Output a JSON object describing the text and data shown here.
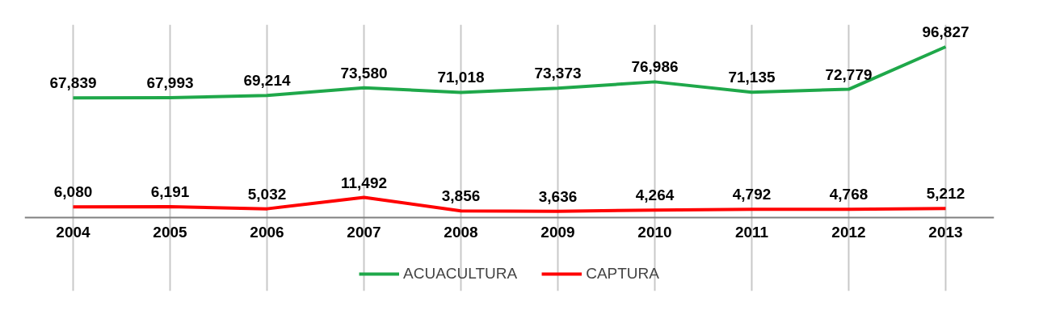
{
  "chart_data": {
    "type": "line",
    "categories": [
      "2004",
      "2005",
      "2006",
      "2007",
      "2008",
      "2009",
      "2010",
      "2011",
      "2012",
      "2013"
    ],
    "series": [
      {
        "name": "ACUACULTURA",
        "color": "#1fa84a",
        "values": [
          67839,
          67993,
          69214,
          73580,
          71018,
          73373,
          76986,
          71135,
          72779,
          96827
        ],
        "value_labels": [
          "67,839",
          "67,993",
          "69,214",
          "73,580",
          "71,018",
          "73,373",
          "76,986",
          "71,135",
          "72,779",
          "96,827"
        ]
      },
      {
        "name": "CAPTURA",
        "color": "#ff0000",
        "values": [
          6080,
          6191,
          5032,
          11492,
          3856,
          3636,
          4264,
          4792,
          4768,
          5212
        ],
        "value_labels": [
          "6,080",
          "6,191",
          "5,032",
          "11,492",
          "3,856",
          "3,636",
          "4,264",
          "4,792",
          "4,768",
          "5,212"
        ]
      }
    ],
    "tick_labels": "x",
    "grid": "x",
    "legend": "bottom",
    "line_style": "solid"
  }
}
